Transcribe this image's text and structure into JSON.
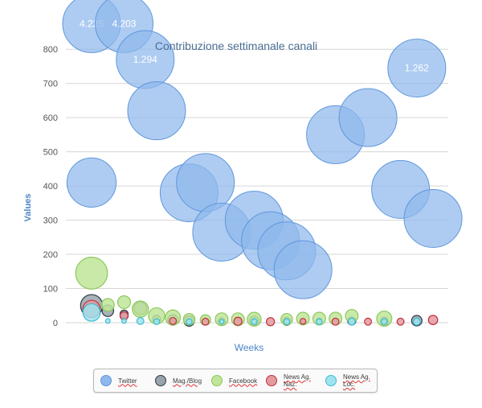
{
  "chart_data": {
    "type": "bubble",
    "title": "Contribuzione settimanale canali",
    "xlabel": "Weeks",
    "ylabel": "Values",
    "ylim": [
      0,
      850
    ],
    "yticks": [
      0,
      100,
      200,
      300,
      400,
      500,
      600,
      700,
      800
    ],
    "x_range": [
      0,
      17
    ],
    "grid": "horizontal",
    "legend_position": "bottom",
    "series": [
      {
        "name": "Twitter",
        "color": "#8fb8ec",
        "stroke": "#5f97dd",
        "points": [
          {
            "x": 0,
            "y": 875,
            "r": 1.0,
            "label": "4.225"
          },
          {
            "x": 1,
            "y": 875,
            "r": 1.0,
            "label": "4.203"
          },
          {
            "x": 1.65,
            "y": 770,
            "r": 1.0,
            "label": "1.294"
          },
          {
            "x": 2,
            "y": 620,
            "r": 1.0
          },
          {
            "x": 0,
            "y": 410,
            "r": 0.85
          },
          {
            "x": 3,
            "y": 380,
            "r": 1.0
          },
          {
            "x": 3.5,
            "y": 410,
            "r": 1.0
          },
          {
            "x": 4,
            "y": 265,
            "r": 1.0
          },
          {
            "x": 5,
            "y": 300,
            "r": 1.0
          },
          {
            "x": 5.5,
            "y": 240,
            "r": 1.0
          },
          {
            "x": 6,
            "y": 210,
            "r": 1.0
          },
          {
            "x": 6.5,
            "y": 155,
            "r": 1.0
          },
          {
            "x": 7.5,
            "y": 550,
            "r": 1.0
          },
          {
            "x": 8.5,
            "y": 600,
            "r": 1.0
          },
          {
            "x": 9.5,
            "y": 390,
            "r": 1.0
          },
          {
            "x": 10,
            "y": 745,
            "r": 1.0,
            "label": "1.262"
          },
          {
            "x": 10.5,
            "y": 305,
            "r": 1.0
          }
        ]
      },
      {
        "name": "Mag./Blog",
        "color": "#9aa4ad",
        "stroke": "#2f3a44",
        "points": [
          {
            "x": 0,
            "y": 50,
            "r": 0.38
          },
          {
            "x": 0.5,
            "y": 35,
            "r": 0.2
          },
          {
            "x": 1,
            "y": 25,
            "r": 0.14
          },
          {
            "x": 1.5,
            "y": 42,
            "r": 0.22
          },
          {
            "x": 2,
            "y": 10,
            "r": 0.14
          },
          {
            "x": 2.5,
            "y": 8,
            "r": 0.18
          },
          {
            "x": 3,
            "y": 5,
            "r": 0.18
          },
          {
            "x": 4,
            "y": 4,
            "r": 0.12
          },
          {
            "x": 5,
            "y": 6,
            "r": 0.16
          },
          {
            "x": 6,
            "y": 4,
            "r": 0.14
          },
          {
            "x": 7,
            "y": 5,
            "r": 0.1
          },
          {
            "x": 8,
            "y": 5,
            "r": 0.14
          },
          {
            "x": 9,
            "y": 4,
            "r": 0.14
          },
          {
            "x": 10,
            "y": 6,
            "r": 0.18
          }
        ]
      },
      {
        "name": "Facebook",
        "color": "#bfe59a",
        "stroke": "#8cc85a",
        "points": [
          {
            "x": 0,
            "y": 145,
            "r": 0.55
          },
          {
            "x": 0.5,
            "y": 52,
            "r": 0.22
          },
          {
            "x": 1,
            "y": 60,
            "r": 0.22
          },
          {
            "x": 1.5,
            "y": 40,
            "r": 0.28
          },
          {
            "x": 2,
            "y": 20,
            "r": 0.28
          },
          {
            "x": 2.5,
            "y": 15,
            "r": 0.26
          },
          {
            "x": 3,
            "y": 10,
            "r": 0.2
          },
          {
            "x": 3.5,
            "y": 8,
            "r": 0.18
          },
          {
            "x": 4,
            "y": 10,
            "r": 0.22
          },
          {
            "x": 4.5,
            "y": 10,
            "r": 0.22
          },
          {
            "x": 5,
            "y": 10,
            "r": 0.24
          },
          {
            "x": 6,
            "y": 10,
            "r": 0.2
          },
          {
            "x": 6.5,
            "y": 12,
            "r": 0.22
          },
          {
            "x": 7,
            "y": 12,
            "r": 0.22
          },
          {
            "x": 7.5,
            "y": 12,
            "r": 0.22
          },
          {
            "x": 8,
            "y": 20,
            "r": 0.22
          },
          {
            "x": 9,
            "y": 12,
            "r": 0.26
          }
        ]
      },
      {
        "name": "News Ag. Naz.",
        "color": "#e39aa0",
        "stroke": "#c0303a",
        "points": [
          {
            "x": 0,
            "y": 40,
            "r": 0.3
          },
          {
            "x": 1,
            "y": 20,
            "r": 0.14
          },
          {
            "x": 2.5,
            "y": 5,
            "r": 0.12
          },
          {
            "x": 3.5,
            "y": 3,
            "r": 0.12
          },
          {
            "x": 4.5,
            "y": 4,
            "r": 0.14
          },
          {
            "x": 5.5,
            "y": 3,
            "r": 0.14
          },
          {
            "x": 6.5,
            "y": 4,
            "r": 0.1
          },
          {
            "x": 7.5,
            "y": 3,
            "r": 0.12
          },
          {
            "x": 8.5,
            "y": 3,
            "r": 0.12
          },
          {
            "x": 9.5,
            "y": 3,
            "r": 0.12
          },
          {
            "x": 10.5,
            "y": 8,
            "r": 0.16
          }
        ]
      },
      {
        "name": "News Ag. Loc.",
        "color": "#9fe3ef",
        "stroke": "#3bbcd2",
        "points": [
          {
            "x": 0,
            "y": 30,
            "r": 0.3
          },
          {
            "x": 0.5,
            "y": 5,
            "r": 0.08
          },
          {
            "x": 1,
            "y": 5,
            "r": 0.08
          },
          {
            "x": 1.5,
            "y": 5,
            "r": 0.12
          },
          {
            "x": 2,
            "y": 3,
            "r": 0.1
          },
          {
            "x": 3,
            "y": 3,
            "r": 0.1
          },
          {
            "x": 4,
            "y": 3,
            "r": 0.08
          },
          {
            "x": 5,
            "y": 3,
            "r": 0.1
          },
          {
            "x": 6,
            "y": 3,
            "r": 0.1
          },
          {
            "x": 7,
            "y": 3,
            "r": 0.1
          },
          {
            "x": 8,
            "y": 3,
            "r": 0.12
          },
          {
            "x": 9,
            "y": 3,
            "r": 0.1
          },
          {
            "x": 10,
            "y": 3,
            "r": 0.12
          }
        ]
      }
    ]
  },
  "legend": {
    "items": [
      {
        "label": "Twitter",
        "color": "#8fb8ec",
        "stroke": "#5f97dd"
      },
      {
        "label": "Mag./Blog",
        "color": "#9aa4ad",
        "stroke": "#2f3a44"
      },
      {
        "label": "Facebook",
        "color": "#bfe59a",
        "stroke": "#8cc85a"
      },
      {
        "label": "News Ag. Naz.",
        "color": "#e39aa0",
        "stroke": "#c0303a"
      },
      {
        "label": "News Ag. Loc.",
        "color": "#9fe3ef",
        "stroke": "#3bbcd2"
      }
    ]
  }
}
